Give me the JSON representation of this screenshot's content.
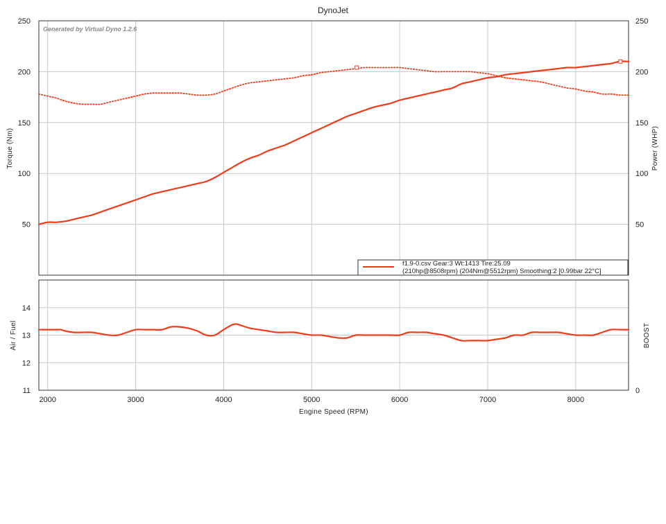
{
  "chart_data": [
    {
      "type": "line",
      "title": "DynoJet",
      "watermark": "Generated by Virtual Dyno 1.2.6",
      "xlabel": "Engine Speed (RPM)",
      "ylabel": "Torque (Nm)",
      "ylabel_right": "Power (WHP)",
      "xlim": [
        1900,
        8600
      ],
      "ylim": [
        0,
        250
      ],
      "x_ticks": [
        "2000",
        "3000",
        "4000",
        "5000",
        "6000",
        "7000",
        "8000"
      ],
      "y_ticks": [
        "50",
        "100",
        "150",
        "200",
        "250"
      ],
      "y_ticks_right": [
        "50",
        "100",
        "150",
        "200",
        "250"
      ],
      "grid": true,
      "legend": {
        "placement": "bottom-right",
        "line1": "f1.9-0.csv Gear:3 Wt:1413 Tire:25.09",
        "line2": "(210hp@8508rpm) (204Nm@5512rpm) Smoothing:2 [0.99bar 22°C]"
      },
      "series": [
        {
          "style": "solid",
          "color": "#ef3b1a",
          "peak_marker": [
            8508,
            210
          ],
          "x": [
            1900,
            2000,
            2100,
            2200,
            2300,
            2400,
            2500,
            2600,
            2700,
            2800,
            2900,
            3000,
            3100,
            3200,
            3300,
            3400,
            3500,
            3600,
            3700,
            3800,
            3900,
            4000,
            4100,
            4200,
            4300,
            4400,
            4500,
            4600,
            4700,
            4800,
            4900,
            5000,
            5100,
            5200,
            5300,
            5400,
            5500,
            5600,
            5700,
            5800,
            5900,
            6000,
            6100,
            6200,
            6300,
            6400,
            6500,
            6600,
            6700,
            6800,
            6900,
            7000,
            7100,
            7200,
            7300,
            7400,
            7500,
            7600,
            7700,
            7800,
            7900,
            8000,
            8100,
            8200,
            8300,
            8400,
            8500,
            8600
          ],
          "y": [
            50,
            52,
            52,
            53,
            55,
            57,
            59,
            62,
            65,
            68,
            71,
            74,
            77,
            80,
            82,
            84,
            86,
            88,
            90,
            92,
            96,
            101,
            106,
            111,
            115,
            118,
            122,
            125,
            128,
            132,
            136,
            140,
            144,
            148,
            152,
            156,
            159,
            162,
            165,
            167,
            169,
            172,
            174,
            176,
            178,
            180,
            182,
            184,
            188,
            190,
            192,
            194,
            195,
            197,
            198,
            199,
            200,
            201,
            202,
            203,
            204,
            204,
            205,
            206,
            207,
            208,
            210,
            210
          ]
        },
        {
          "style": "dotted",
          "color": "#ef3b1a",
          "peak_marker": [
            5512,
            204
          ],
          "x": [
            1900,
            2000,
            2100,
            2200,
            2300,
            2400,
            2500,
            2600,
            2700,
            2800,
            2900,
            3000,
            3100,
            3200,
            3300,
            3400,
            3500,
            3600,
            3700,
            3800,
            3900,
            4000,
            4100,
            4200,
            4300,
            4400,
            4500,
            4600,
            4700,
            4800,
            4900,
            5000,
            5100,
            5200,
            5300,
            5400,
            5500,
            5600,
            5700,
            5800,
            5900,
            6000,
            6100,
            6200,
            6300,
            6400,
            6500,
            6600,
            6700,
            6800,
            6900,
            7000,
            7100,
            7200,
            7300,
            7400,
            7500,
            7600,
            7700,
            7800,
            7900,
            8000,
            8100,
            8200,
            8300,
            8400,
            8500,
            8600
          ],
          "y": [
            178,
            176,
            174,
            171,
            169,
            168,
            168,
            168,
            170,
            172,
            174,
            176,
            178,
            179,
            179,
            179,
            179,
            178,
            177,
            177,
            178,
            181,
            184,
            187,
            189,
            190,
            191,
            192,
            193,
            194,
            196,
            197,
            199,
            200,
            201,
            202,
            203,
            204,
            204,
            204,
            204,
            204,
            203,
            202,
            201,
            200,
            200,
            200,
            200,
            200,
            199,
            198,
            196,
            194,
            193,
            192,
            191,
            190,
            188,
            186,
            184,
            183,
            181,
            180,
            178,
            178,
            177,
            177
          ]
        }
      ]
    },
    {
      "type": "line",
      "ylabel": "Air / Fuel",
      "ylabel_right": "BOOST",
      "xlim": [
        1900,
        8600
      ],
      "ylim": [
        11,
        15
      ],
      "y_ticks": [
        "11",
        "12",
        "13",
        "14"
      ],
      "y_ticks_right": [
        "0"
      ],
      "grid": true,
      "series": [
        {
          "style": "solid",
          "color": "#ef3b1a",
          "x": [
            1900,
            2000,
            2100,
            2150,
            2200,
            2300,
            2400,
            2500,
            2600,
            2700,
            2800,
            2900,
            3000,
            3100,
            3200,
            3300,
            3400,
            3500,
            3600,
            3700,
            3800,
            3900,
            4000,
            4100,
            4150,
            4200,
            4300,
            4400,
            4500,
            4600,
            4700,
            4800,
            4900,
            5000,
            5100,
            5200,
            5300,
            5400,
            5500,
            5600,
            5700,
            5800,
            5900,
            6000,
            6100,
            6200,
            6300,
            6400,
            6500,
            6600,
            6700,
            6800,
            6900,
            7000,
            7100,
            7200,
            7300,
            7400,
            7500,
            7600,
            7700,
            7800,
            7900,
            8000,
            8100,
            8200,
            8300,
            8400,
            8500,
            8600
          ],
          "y": [
            13.2,
            13.2,
            13.2,
            13.2,
            13.15,
            13.1,
            13.1,
            13.1,
            13.05,
            13.0,
            13.0,
            13.1,
            13.2,
            13.2,
            13.2,
            13.2,
            13.3,
            13.3,
            13.25,
            13.15,
            13.0,
            13.0,
            13.2,
            13.38,
            13.4,
            13.35,
            13.25,
            13.2,
            13.15,
            13.1,
            13.1,
            13.1,
            13.05,
            13.0,
            13.0,
            12.95,
            12.9,
            12.9,
            13.0,
            13.0,
            13.0,
            13.0,
            13.0,
            13.0,
            13.1,
            13.1,
            13.1,
            13.05,
            13.0,
            12.9,
            12.8,
            12.8,
            12.8,
            12.8,
            12.85,
            12.9,
            13.0,
            13.0,
            13.1,
            13.1,
            13.1,
            13.1,
            13.05,
            13.0,
            13.0,
            13.0,
            13.1,
            13.2,
            13.2,
            13.2
          ]
        }
      ]
    }
  ]
}
